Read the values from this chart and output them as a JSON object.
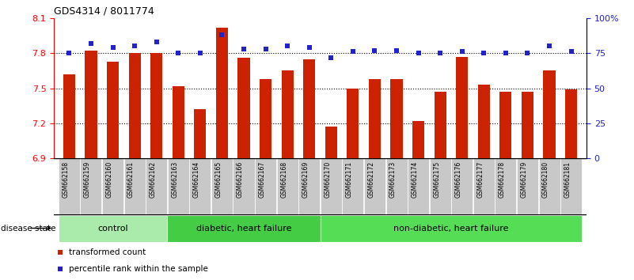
{
  "title": "GDS4314 / 8011774",
  "samples": [
    "GSM662158",
    "GSM662159",
    "GSM662160",
    "GSM662161",
    "GSM662162",
    "GSM662163",
    "GSM662164",
    "GSM662165",
    "GSM662166",
    "GSM662167",
    "GSM662168",
    "GSM662169",
    "GSM662170",
    "GSM662171",
    "GSM662172",
    "GSM662173",
    "GSM662174",
    "GSM662175",
    "GSM662176",
    "GSM662177",
    "GSM662178",
    "GSM662179",
    "GSM662180",
    "GSM662181"
  ],
  "transformed_count": [
    7.62,
    7.82,
    7.73,
    7.8,
    7.8,
    7.52,
    7.32,
    8.02,
    7.76,
    7.58,
    7.65,
    7.75,
    7.17,
    7.5,
    7.58,
    7.58,
    7.22,
    7.47,
    7.77,
    7.53,
    7.47,
    7.47,
    7.65,
    7.49
  ],
  "percentile": [
    75,
    82,
    79,
    80,
    83,
    75,
    75,
    88,
    78,
    78,
    80,
    79,
    72,
    76,
    77,
    77,
    75,
    75,
    76,
    75,
    75,
    75,
    80,
    76
  ],
  "groups": [
    {
      "label": "control",
      "start": 0,
      "end": 5,
      "color": "#aaeaaa"
    },
    {
      "label": "diabetic, heart failure",
      "start": 5,
      "end": 12,
      "color": "#44cc44"
    },
    {
      "label": "non-diabetic, heart failure",
      "start": 12,
      "end": 24,
      "color": "#55dd55"
    }
  ],
  "bar_color": "#CC2200",
  "dot_color": "#2222CC",
  "ylim_left": [
    6.9,
    8.1
  ],
  "ylim_right": [
    0,
    100
  ],
  "yticks_left": [
    6.9,
    7.2,
    7.5,
    7.8,
    8.1
  ],
  "yticks_right": [
    0,
    25,
    50,
    75,
    100
  ],
  "ytick_labels_right": [
    "0",
    "25",
    "50",
    "75",
    "100%"
  ],
  "grid_values": [
    7.8,
    7.5,
    7.2
  ],
  "bar_bg_color": "#c8c8c8",
  "legend_items": [
    {
      "label": "transformed count",
      "color": "#CC2200"
    },
    {
      "label": "percentile rank within the sample",
      "color": "#2222CC"
    }
  ]
}
